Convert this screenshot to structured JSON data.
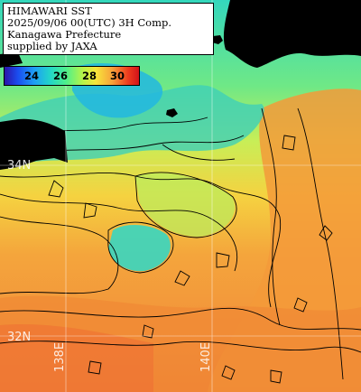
{
  "header": {
    "line1": "HIMAWARI SST",
    "line2": "2025/09/06 00(UTC) 3H Comp.",
    "line3": "Kanagawa Prefecture",
    "line4": "supplied by JAXA"
  },
  "colorbar": {
    "ticks": [
      "24",
      "26",
      "28",
      "30"
    ]
  },
  "grid_labels": {
    "lat_34": "34N",
    "lat_32": "32N",
    "lon_138": "138E",
    "lon_140": "140E"
  },
  "colors": {
    "land": "#000000",
    "coast_line": "#000000",
    "grid_line": "#ffffff",
    "sst_24": "#1a4df0",
    "sst_26": "#22d6c8",
    "sst_27": "#b6f44a",
    "sst_28": "#f7c83a",
    "sst_29": "#f39b3a",
    "sst_30": "#ee3b1e"
  }
}
